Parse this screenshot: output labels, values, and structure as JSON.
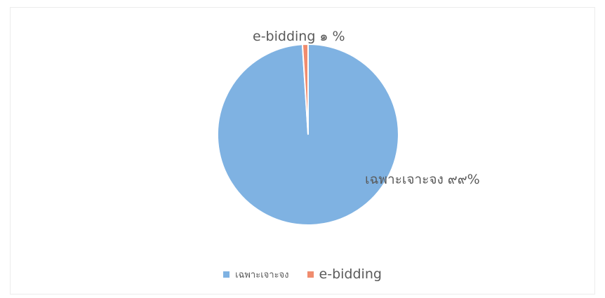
{
  "chart_data": {
    "type": "pie",
    "title": "",
    "categories": [
      "เฉพาะเจาะจง",
      "e-bidding"
    ],
    "values": [
      99,
      1
    ],
    "data_labels": [
      "เฉพาะเจาะจง ๙๙%",
      "e-bidding ๑ %"
    ],
    "colors": [
      "#7fb2e2",
      "#f08c6e"
    ],
    "start_angle_deg": 0,
    "direction": "clockwise",
    "legend_position": "bottom"
  }
}
